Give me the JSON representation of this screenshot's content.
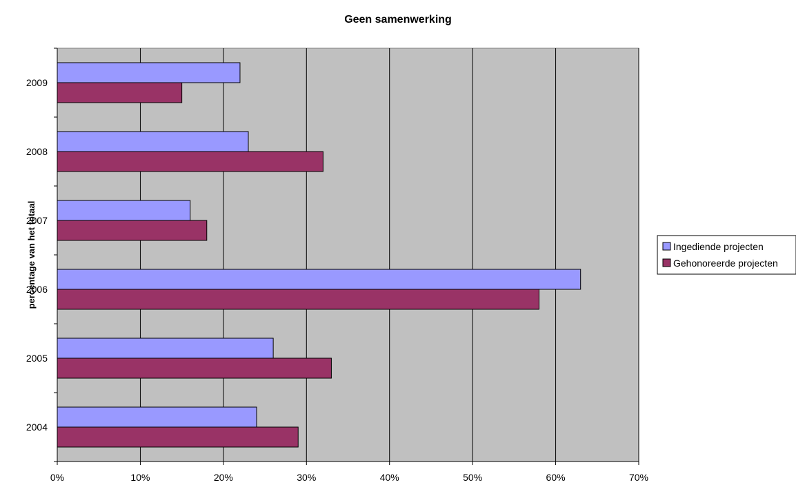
{
  "chart_data": {
    "type": "bar",
    "orientation": "horizontal",
    "title": "Geen samenwerking",
    "xlabel": "",
    "ylabel": "percentage van het totaal",
    "categories": [
      "2004",
      "2005",
      "2006",
      "2007",
      "2008",
      "2009"
    ],
    "series": [
      {
        "name": "Ingediende projecten",
        "color": "#9999ff",
        "values": [
          24,
          26,
          63,
          16,
          23,
          22
        ]
      },
      {
        "name": "Gehonoreerde projecten",
        "color": "#993366",
        "values": [
          29,
          33,
          58,
          18,
          32,
          15
        ]
      }
    ],
    "xlim": [
      0,
      70
    ],
    "xticks": [
      "0%",
      "10%",
      "20%",
      "30%",
      "40%",
      "50%",
      "60%",
      "70%"
    ],
    "plot_background": "#c0c0c0",
    "grid": "vertical",
    "legend_position": "right"
  }
}
